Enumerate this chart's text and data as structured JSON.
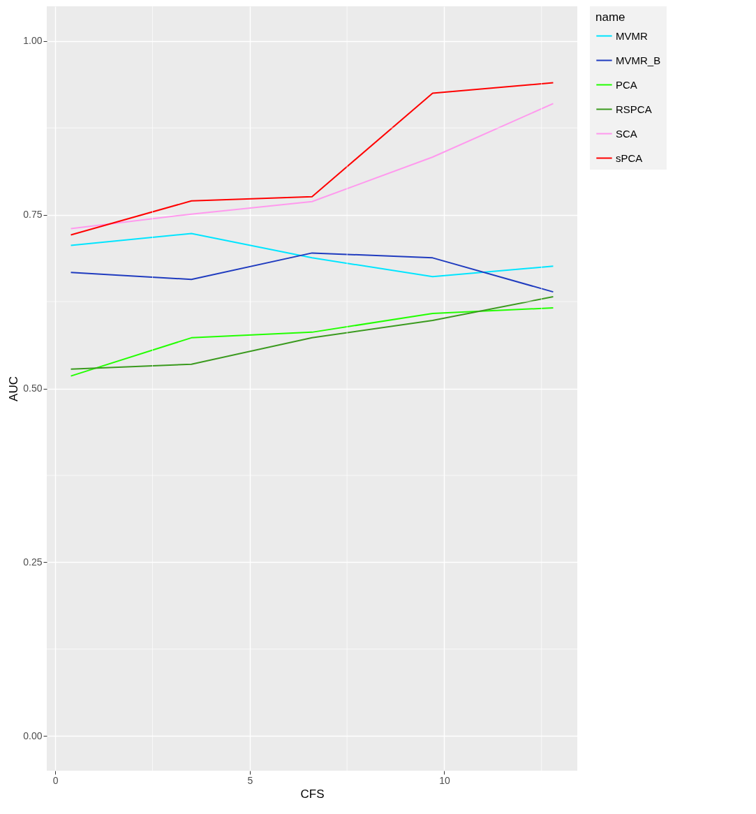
{
  "chart_data": {
    "type": "line",
    "xlabel": "CFS",
    "ylabel": "AUC",
    "legend_title": "name",
    "x": [
      0.4,
      3.5,
      6.6,
      9.7,
      12.8
    ],
    "series": [
      {
        "name": "MVMR",
        "color": "#00e5ff",
        "values": [
          0.706,
          0.723,
          0.688,
          0.661,
          0.676
        ]
      },
      {
        "name": "MVMR_B",
        "color": "#1f3bbf",
        "values": [
          0.667,
          0.657,
          0.695,
          0.688,
          0.639
        ]
      },
      {
        "name": "PCA",
        "color": "#22ff00",
        "values": [
          0.518,
          0.573,
          0.581,
          0.608,
          0.616
        ]
      },
      {
        "name": "RSPCA",
        "color": "#3a9a1e",
        "values": [
          0.528,
          0.535,
          0.573,
          0.598,
          0.632
        ]
      },
      {
        "name": "SCA",
        "color": "#ff99ee",
        "values": [
          0.73,
          0.751,
          0.769,
          0.833,
          0.91
        ]
      },
      {
        "name": "sPCA",
        "color": "#ff0000",
        "values": [
          0.721,
          0.77,
          0.776,
          0.925,
          0.94
        ]
      }
    ],
    "xlim": [
      -0.22,
      13.42
    ],
    "ylim": [
      -0.05,
      1.05
    ],
    "xticks": [
      0,
      5,
      10
    ],
    "yticks": [
      {
        "value": 0,
        "label": "0.00"
      },
      {
        "value": 0.25,
        "label": "0.25"
      },
      {
        "value": 0.5,
        "label": "0.50"
      },
      {
        "value": 0.75,
        "label": "0.75"
      },
      {
        "value": 1,
        "label": "1.00"
      }
    ],
    "grid": true,
    "legend": "right",
    "marker": "none",
    "line_style": "solid"
  }
}
